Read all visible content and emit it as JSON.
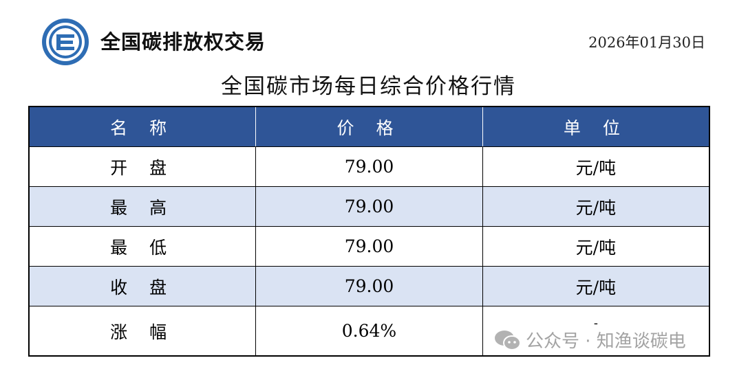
{
  "header": {
    "brand": "全国碳排放权交易",
    "date": "2026年01月30日"
  },
  "title": "全国碳市场每日综合价格行情",
  "table": {
    "columns": [
      "名 称",
      "价 格",
      "单 位"
    ],
    "rows": [
      {
        "name": "开 盘",
        "price": "79.00",
        "unit": "元/吨"
      },
      {
        "name": "最 高",
        "price": "79.00",
        "unit": "元/吨"
      },
      {
        "name": "最 低",
        "price": "79.00",
        "unit": "元/吨"
      },
      {
        "name": "收 盘",
        "price": "79.00",
        "unit": "元/吨"
      },
      {
        "name": "涨 幅",
        "price": "0.64%",
        "unit": "-"
      }
    ]
  },
  "watermark": "公众号 · 知渔谈碳电",
  "colors": {
    "header_bg": "#2f5597",
    "alt_row": "#dae3f3"
  }
}
